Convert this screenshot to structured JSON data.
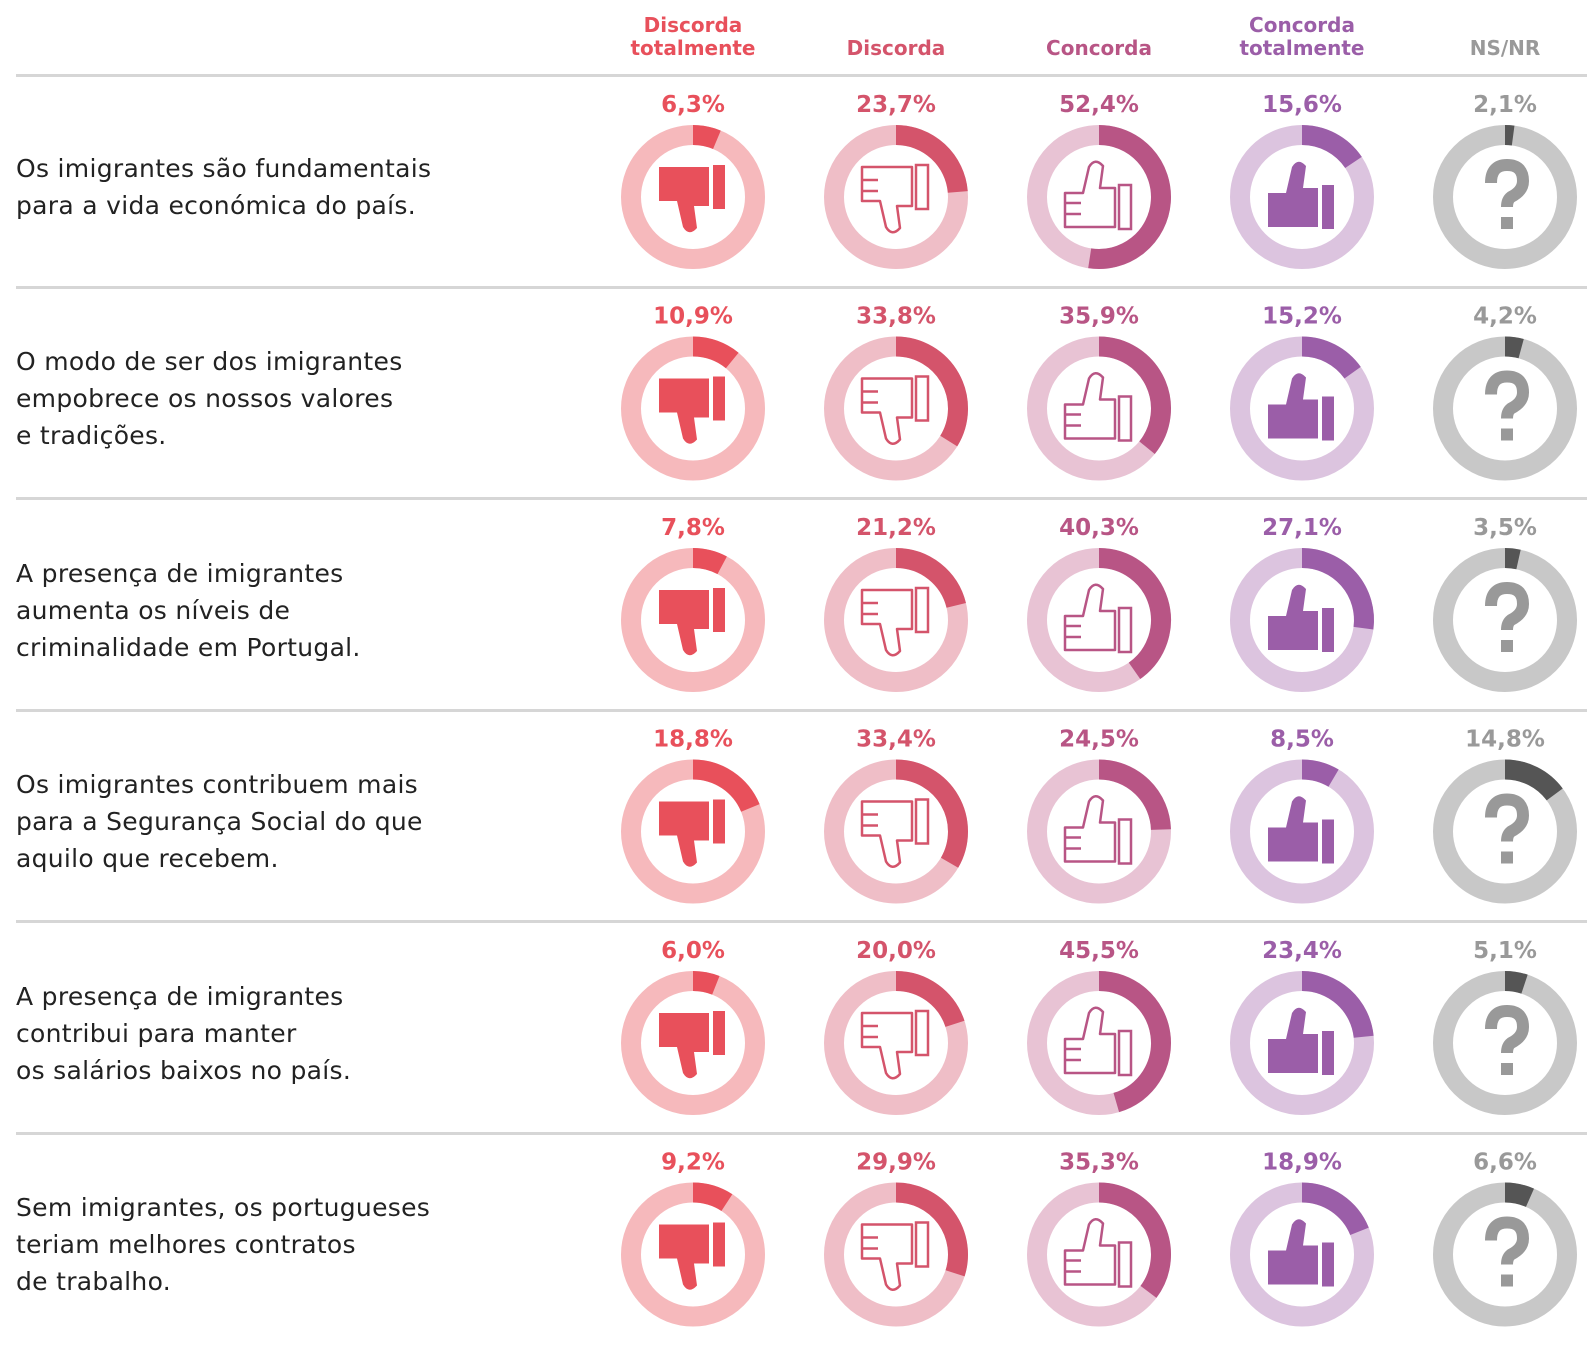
{
  "chart_data": {
    "type": "donut",
    "categories": [
      "Os imigrantes são fundamentais\npara a vida económica do país.",
      "O modo de ser dos imigrantes\nempobrece os nossos valores\ne tradições.",
      "A presença de imigrantes\naumenta os níveis de\ncriminalidade em Portugal.",
      "Os imigrantes contribuem mais\npara a Segurança Social do que\naquilo que recebem.",
      "A presença de imigrantes\ncontribui para manter\nos salários baixos no país.",
      "Sem imigrantes, os portugueses\nteriam melhores contratos\nde trabalho."
    ],
    "series": [
      {
        "name": "Discorda\ntotalmente",
        "color": "#e8505b",
        "track_color": "#f6b9bc",
        "values": [
          6.3,
          10.9,
          7.8,
          18.8,
          6.0,
          9.2
        ],
        "value_labels": [
          "6,3%",
          "10,9%",
          "7,8%",
          "18,8%",
          "6,0%",
          "9,2%"
        ]
      },
      {
        "name": "Discorda",
        "color": "#d4546b",
        "track_color": "#efbec7",
        "values": [
          23.7,
          33.8,
          21.2,
          33.4,
          20.0,
          29.9
        ],
        "value_labels": [
          "23,7%",
          "33,8%",
          "21,2%",
          "33,4%",
          "20,0%",
          "29,9%"
        ]
      },
      {
        "name": "Concorda",
        "color": "#b85585",
        "track_color": "#e8c3d4",
        "values": [
          52.4,
          35.9,
          40.3,
          24.5,
          45.5,
          35.3
        ],
        "value_labels": [
          "52,4%",
          "35,9%",
          "40,3%",
          "24,5%",
          "45,5%",
          "35,3%"
        ]
      },
      {
        "name": "Concorda\ntotalmente",
        "color": "#9b5ea8",
        "track_color": "#dcc4df",
        "values": [
          15.6,
          15.2,
          27.1,
          8.5,
          23.4,
          18.9
        ],
        "value_labels": [
          "15,6%",
          "15,2%",
          "27,1%",
          "8,5%",
          "23,4%",
          "18,9%"
        ]
      },
      {
        "name": "NS/NR",
        "color": "#555555",
        "track_color": "#c8c8c8",
        "values": [
          2.1,
          4.2,
          3.5,
          14.8,
          5.1,
          6.6
        ],
        "value_labels": [
          "2,1%",
          "4,2%",
          "3,5%",
          "14,8%",
          "5,1%",
          "6,6%"
        ]
      }
    ]
  }
}
